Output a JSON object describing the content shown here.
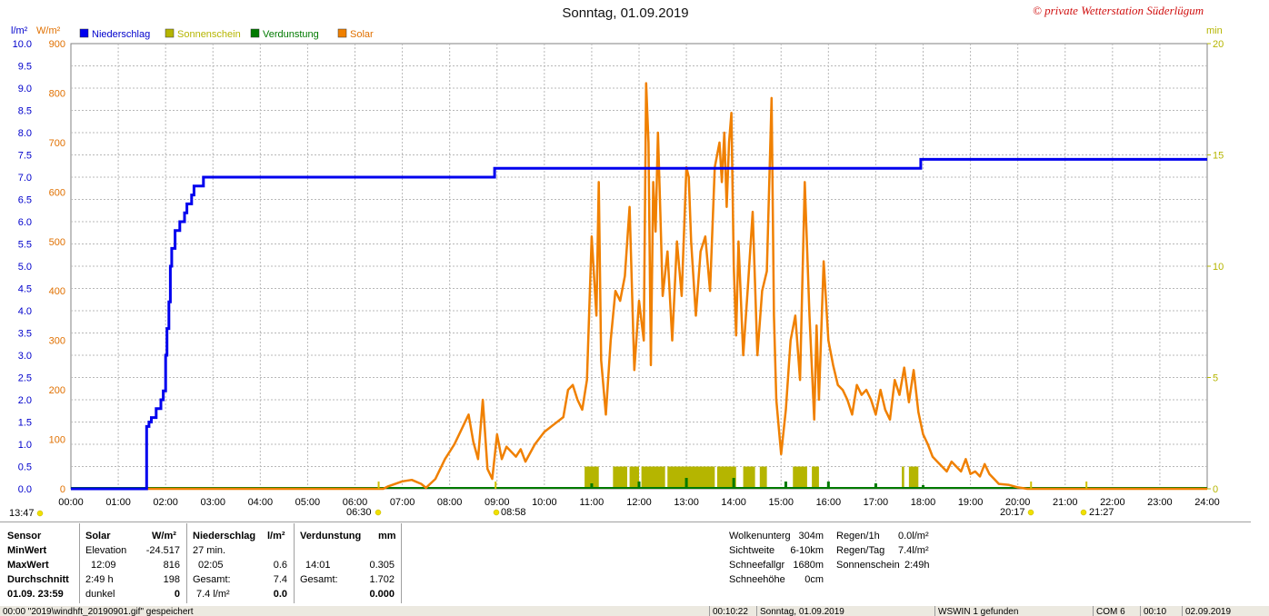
{
  "title": "Sonntag, 01.09.2019",
  "credit": "© private Wetterstation Süderlügum",
  "legend": [
    {
      "label": "Niederschlag",
      "color": "#0000ee"
    },
    {
      "label": "Sonnenschein",
      "color": "#b5b500"
    },
    {
      "label": "Verdunstung",
      "color": "#007a00"
    },
    {
      "label": "Solar",
      "color": "#f08000"
    }
  ],
  "axis_units": {
    "left_rain": "l/m²",
    "left_solar": "W/m²",
    "right": "min"
  },
  "chart_data": {
    "type": "line",
    "xlabel": "",
    "x_range_hours": [
      0,
      24
    ],
    "x_ticks": [
      "00:00",
      "01:00",
      "02:00",
      "03:00",
      "04:00",
      "05:00",
      "06:00",
      "07:00",
      "08:00",
      "09:00",
      "10:00",
      "11:00",
      "12:00",
      "13:00",
      "14:00",
      "15:00",
      "16:00",
      "17:00",
      "18:00",
      "19:00",
      "20:00",
      "21:00",
      "22:00",
      "23:00",
      "24:00"
    ],
    "y_left_rain": {
      "range": [
        0,
        10
      ],
      "ticks": [
        "0.0",
        "0.5",
        "1.0",
        "1.5",
        "2.0",
        "2.5",
        "3.0",
        "3.5",
        "4.0",
        "4.5",
        "5.0",
        "5.5",
        "6.0",
        "6.5",
        "7.0",
        "7.5",
        "8.0",
        "8.5",
        "9.0",
        "9.5",
        "10.0"
      ]
    },
    "y_left_solar": {
      "range": [
        0,
        900
      ],
      "ticks": [
        "0",
        "100",
        "200",
        "300",
        "400",
        "500",
        "600",
        "700",
        "800",
        "900"
      ]
    },
    "y_right": {
      "range": [
        0,
        20
      ],
      "ticks": [
        "0",
        "5",
        "10",
        "15",
        "20"
      ]
    },
    "grid": true,
    "series": [
      {
        "name": "Niederschlag",
        "axis": "rain",
        "step": true,
        "points": [
          [
            0,
            0
          ],
          [
            1.55,
            0
          ],
          [
            1.6,
            1.4
          ],
          [
            1.65,
            1.5
          ],
          [
            1.7,
            1.6
          ],
          [
            1.8,
            1.8
          ],
          [
            1.9,
            2.0
          ],
          [
            1.95,
            2.2
          ],
          [
            2.0,
            3.0
          ],
          [
            2.03,
            3.6
          ],
          [
            2.07,
            4.2
          ],
          [
            2.1,
            5.0
          ],
          [
            2.13,
            5.4
          ],
          [
            2.2,
            5.8
          ],
          [
            2.3,
            6.0
          ],
          [
            2.4,
            6.2
          ],
          [
            2.45,
            6.4
          ],
          [
            2.55,
            6.6
          ],
          [
            2.6,
            6.8
          ],
          [
            2.8,
            7.0
          ],
          [
            8.9,
            7.0
          ],
          [
            8.95,
            7.2
          ],
          [
            17.9,
            7.2
          ],
          [
            17.95,
            7.4
          ],
          [
            24,
            7.4
          ]
        ]
      },
      {
        "name": "Solar",
        "axis": "solar",
        "points": [
          [
            0,
            0
          ],
          [
            6.6,
            0
          ],
          [
            6.7,
            5
          ],
          [
            7.0,
            15
          ],
          [
            7.2,
            18
          ],
          [
            7.4,
            10
          ],
          [
            7.5,
            2
          ],
          [
            7.7,
            20
          ],
          [
            7.9,
            60
          ],
          [
            8.1,
            90
          ],
          [
            8.3,
            130
          ],
          [
            8.4,
            150
          ],
          [
            8.5,
            95
          ],
          [
            8.6,
            60
          ],
          [
            8.7,
            180
          ],
          [
            8.8,
            40
          ],
          [
            8.9,
            20
          ],
          [
            9.0,
            110
          ],
          [
            9.1,
            60
          ],
          [
            9.2,
            85
          ],
          [
            9.4,
            65
          ],
          [
            9.5,
            80
          ],
          [
            9.6,
            55
          ],
          [
            9.8,
            90
          ],
          [
            10.0,
            115
          ],
          [
            10.2,
            130
          ],
          [
            10.4,
            145
          ],
          [
            10.5,
            200
          ],
          [
            10.6,
            210
          ],
          [
            10.7,
            180
          ],
          [
            10.8,
            160
          ],
          [
            10.9,
            220
          ],
          [
            11.0,
            510
          ],
          [
            11.1,
            350
          ],
          [
            11.15,
            620
          ],
          [
            11.2,
            260
          ],
          [
            11.3,
            150
          ],
          [
            11.4,
            300
          ],
          [
            11.5,
            400
          ],
          [
            11.6,
            380
          ],
          [
            11.7,
            430
          ],
          [
            11.8,
            570
          ],
          [
            11.9,
            240
          ],
          [
            12.0,
            380
          ],
          [
            12.1,
            300
          ],
          [
            12.15,
            820
          ],
          [
            12.2,
            700
          ],
          [
            12.25,
            250
          ],
          [
            12.3,
            620
          ],
          [
            12.35,
            520
          ],
          [
            12.4,
            720
          ],
          [
            12.45,
            560
          ],
          [
            12.5,
            390
          ],
          [
            12.6,
            480
          ],
          [
            12.7,
            300
          ],
          [
            12.8,
            500
          ],
          [
            12.9,
            390
          ],
          [
            13.0,
            650
          ],
          [
            13.05,
            630
          ],
          [
            13.1,
            500
          ],
          [
            13.2,
            350
          ],
          [
            13.3,
            480
          ],
          [
            13.4,
            510
          ],
          [
            13.5,
            400
          ],
          [
            13.6,
            650
          ],
          [
            13.7,
            700
          ],
          [
            13.75,
            620
          ],
          [
            13.8,
            720
          ],
          [
            13.85,
            570
          ],
          [
            13.9,
            700
          ],
          [
            13.95,
            760
          ],
          [
            14.0,
            450
          ],
          [
            14.05,
            310
          ],
          [
            14.1,
            500
          ],
          [
            14.2,
            270
          ],
          [
            14.3,
            410
          ],
          [
            14.4,
            560
          ],
          [
            14.5,
            270
          ],
          [
            14.6,
            400
          ],
          [
            14.7,
            440
          ],
          [
            14.8,
            790
          ],
          [
            14.85,
            350
          ],
          [
            14.9,
            180
          ],
          [
            15.0,
            70
          ],
          [
            15.1,
            160
          ],
          [
            15.2,
            300
          ],
          [
            15.3,
            350
          ],
          [
            15.4,
            220
          ],
          [
            15.5,
            620
          ],
          [
            15.6,
            350
          ],
          [
            15.7,
            140
          ],
          [
            15.75,
            330
          ],
          [
            15.8,
            180
          ],
          [
            15.9,
            460
          ],
          [
            16.0,
            300
          ],
          [
            16.1,
            250
          ],
          [
            16.2,
            210
          ],
          [
            16.3,
            200
          ],
          [
            16.4,
            180
          ],
          [
            16.5,
            150
          ],
          [
            16.6,
            210
          ],
          [
            16.7,
            190
          ],
          [
            16.8,
            200
          ],
          [
            16.9,
            180
          ],
          [
            17.0,
            150
          ],
          [
            17.1,
            200
          ],
          [
            17.2,
            160
          ],
          [
            17.3,
            140
          ],
          [
            17.4,
            220
          ],
          [
            17.5,
            190
          ],
          [
            17.6,
            245
          ],
          [
            17.7,
            175
          ],
          [
            17.8,
            240
          ],
          [
            17.9,
            155
          ],
          [
            18.0,
            110
          ],
          [
            18.1,
            90
          ],
          [
            18.2,
            65
          ],
          [
            18.3,
            55
          ],
          [
            18.4,
            45
          ],
          [
            18.5,
            35
          ],
          [
            18.6,
            55
          ],
          [
            18.7,
            45
          ],
          [
            18.8,
            35
          ],
          [
            18.9,
            60
          ],
          [
            19.0,
            30
          ],
          [
            19.1,
            35
          ],
          [
            19.2,
            25
          ],
          [
            19.3,
            50
          ],
          [
            19.4,
            30
          ],
          [
            19.5,
            20
          ],
          [
            19.6,
            10
          ],
          [
            19.8,
            8
          ],
          [
            20.0,
            3
          ],
          [
            20.2,
            0
          ],
          [
            24,
            0
          ]
        ]
      }
    ],
    "sunshine_bars": [
      [
        10.85,
        11.15
      ],
      [
        11.45,
        11.75
      ],
      [
        11.8,
        12.0
      ],
      [
        12.05,
        12.55
      ],
      [
        12.6,
        13.6
      ],
      [
        13.65,
        14.05
      ],
      [
        14.2,
        14.45
      ],
      [
        14.55,
        14.7
      ],
      [
        15.25,
        15.55
      ],
      [
        15.65,
        15.8
      ],
      [
        17.55,
        17.6
      ],
      [
        17.7,
        17.9
      ]
    ],
    "evaporation_marks": [
      [
        11.0,
        0.3
      ],
      [
        12.0,
        0.4
      ],
      [
        13.0,
        0.6
      ],
      [
        14.0,
        0.6
      ],
      [
        15.1,
        0.4
      ],
      [
        16.0,
        0.4
      ],
      [
        17.0,
        0.3
      ],
      [
        18.0,
        0.2
      ]
    ],
    "markers": [
      {
        "label": "13:47",
        "hour": 0
      },
      {
        "label": "06:30",
        "hour": 6.5
      },
      {
        "label": "08:58",
        "hour": 8.97
      },
      {
        "label": "20:17",
        "hour": 20.28
      },
      {
        "label": "21:27",
        "hour": 21.45
      }
    ]
  },
  "panel": {
    "col1": {
      "header": "Sensor",
      "rows": [
        "MinWert",
        "MaxWert",
        "Durchschnitt",
        "01.09. 23:59"
      ]
    },
    "solar": {
      "header": "Solar",
      "unit": "W/m²",
      "rows": [
        [
          "Elevation",
          "-24.517"
        ],
        [
          "12:09",
          "816"
        ],
        [
          "2:49 h",
          "198"
        ],
        [
          "dunkel",
          "0"
        ]
      ]
    },
    "rain": {
      "header": "Niederschlag",
      "unit": "l/m²",
      "rows": [
        [
          "27 min.",
          ""
        ],
        [
          "02:05",
          "0.6"
        ],
        [
          "Gesamt:",
          "7.4"
        ],
        [
          "7.4 l/m²",
          "0.0"
        ]
      ]
    },
    "evap": {
      "header": "Verdunstung",
      "unit": "mm",
      "rows": [
        [
          "",
          ""
        ],
        [
          "14:01",
          "0.305"
        ],
        [
          "Gesamt:",
          "1.702"
        ],
        [
          "",
          "0.000"
        ]
      ]
    },
    "weather": [
      [
        "Wolkenunterg",
        "304m"
      ],
      [
        "Sichtweite",
        "6-10km"
      ],
      [
        "Schneefallgr",
        "1680m"
      ],
      [
        "Schneehöhe",
        "0cm"
      ]
    ],
    "rainstats": [
      [
        "Regen/1h",
        "0.0l/m²"
      ],
      [
        "Regen/Tag",
        "7.4l/m²"
      ],
      [
        "Sonnenschein",
        "2:49h"
      ]
    ]
  },
  "status": {
    "s1": "00:00  \"2019\\windhft_20190901.gif\" gespeichert",
    "s2": "00:10:22",
    "s3": "Sonntag, 01.09.2019",
    "s4": "WSWIN 1 gefunden",
    "s5": "COM 6",
    "s6": "00:10",
    "s7": "02.09.2019"
  }
}
